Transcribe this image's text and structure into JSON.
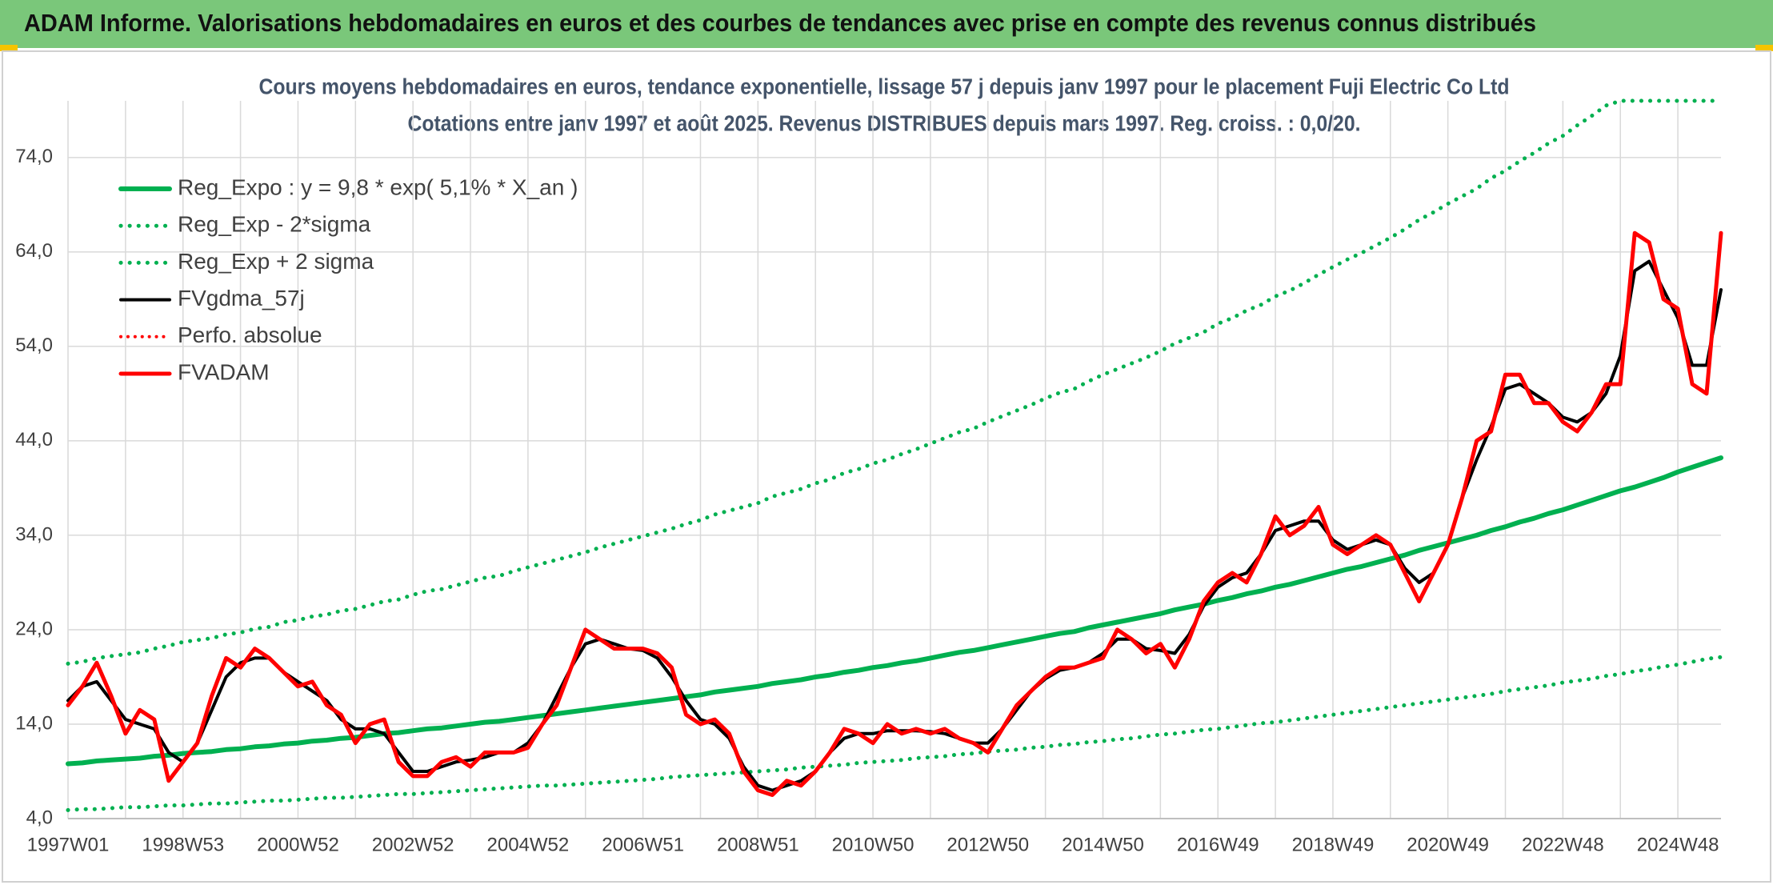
{
  "header": {
    "title": "ADAM Informe. Valorisations hebdomadaires en euros et des courbes de tendances avec prise en compte des revenus connus distribués"
  },
  "chart_data": {
    "type": "line",
    "title": "Cours moyens hebdomadaires en euros, tendance exponentielle, lissage 57 j depuis janv 1997 pour le placement Fuji Electric Co Ltd",
    "subtitle": "Cotations entre janv 1997 et août 2025. Revenus DISTRIBUES depuis mars 1997. Reg. croiss. : 0,0/20.",
    "categories": [
      "1997W01",
      null,
      null,
      null,
      null,
      null,
      null,
      null,
      "1998W53",
      null,
      null,
      null,
      null,
      null,
      null,
      null,
      "2000W52",
      null,
      null,
      null,
      null,
      null,
      null,
      null,
      "2002W52",
      null,
      null,
      null,
      null,
      null,
      null,
      null,
      "2004W52",
      null,
      null,
      null,
      null,
      null,
      null,
      null,
      "2006W51",
      null,
      null,
      null,
      null,
      null,
      null,
      null,
      "2008W51",
      null,
      null,
      null,
      null,
      null,
      null,
      null,
      "2010W50",
      null,
      null,
      null,
      null,
      null,
      null,
      null,
      "2012W50",
      null,
      null,
      null,
      null,
      null,
      null,
      null,
      "2014W50",
      null,
      null,
      null,
      null,
      null,
      null,
      null,
      "2016W49",
      null,
      null,
      null,
      null,
      null,
      null,
      null,
      "2018W49",
      null,
      null,
      null,
      null,
      null,
      null,
      null,
      "2020W49",
      null,
      null,
      null,
      null,
      null,
      null,
      null,
      "2022W48",
      null,
      null,
      null,
      null,
      null,
      null,
      null,
      "2024W48",
      null,
      null,
      null
    ],
    "ylim": [
      4,
      80
    ],
    "yticks": [
      {
        "value": 4,
        "label": "4,0"
      },
      {
        "value": 14,
        "label": "14,0"
      },
      {
        "value": 24,
        "label": "24,0"
      },
      {
        "value": 34,
        "label": "34,0"
      },
      {
        "value": 44,
        "label": "44,0"
      },
      {
        "value": 54,
        "label": "54,0"
      },
      {
        "value": 64,
        "label": "64,0"
      },
      {
        "value": 74,
        "label": "74,0"
      }
    ],
    "grid": true,
    "legend": "top-left",
    "series": [
      {
        "name": "Reg_Expo : y = 9,8 * exp( 5,1% *  X_an )",
        "color": "#00b050",
        "style": "solid",
        "width": 6,
        "values": [
          9.8,
          9.9,
          10.1,
          10.2,
          10.3,
          10.4,
          10.6,
          10.7,
          10.9,
          11.0,
          11.1,
          11.3,
          11.4,
          11.6,
          11.7,
          11.9,
          12.0,
          12.2,
          12.3,
          12.5,
          12.6,
          12.8,
          13.0,
          13.1,
          13.3,
          13.5,
          13.6,
          13.8,
          14.0,
          14.2,
          14.3,
          14.5,
          14.7,
          14.9,
          15.1,
          15.3,
          15.5,
          15.7,
          15.9,
          16.1,
          16.3,
          16.5,
          16.7,
          16.9,
          17.1,
          17.4,
          17.6,
          17.8,
          18.0,
          18.3,
          18.5,
          18.7,
          19.0,
          19.2,
          19.5,
          19.7,
          20.0,
          20.2,
          20.5,
          20.7,
          21.0,
          21.3,
          21.6,
          21.8,
          22.1,
          22.4,
          22.7,
          23.0,
          23.3,
          23.6,
          23.8,
          24.2,
          24.5,
          24.8,
          25.1,
          25.4,
          25.7,
          26.1,
          26.4,
          26.7,
          27.1,
          27.4,
          27.8,
          28.1,
          28.5,
          28.8,
          29.2,
          29.6,
          30.0,
          30.4,
          30.7,
          31.1,
          31.5,
          31.9,
          32.4,
          32.8,
          33.2,
          33.6,
          34.0,
          34.5,
          34.9,
          35.4,
          35.8,
          36.3,
          36.7,
          37.2,
          37.7,
          38.2,
          38.7,
          39.1,
          39.6,
          40.1,
          40.7,
          41.2,
          41.7,
          42.2
        ]
      },
      {
        "name": "Reg_Exp - 2*sigma",
        "color": "#00b050",
        "style": "dotted",
        "width": 5,
        "values": [
          4.9,
          5.0,
          5.0,
          5.1,
          5.2,
          5.2,
          5.3,
          5.4,
          5.4,
          5.5,
          5.6,
          5.6,
          5.7,
          5.8,
          5.9,
          5.9,
          6.0,
          6.1,
          6.2,
          6.2,
          6.3,
          6.4,
          6.5,
          6.6,
          6.6,
          6.7,
          6.8,
          6.9,
          7.0,
          7.1,
          7.2,
          7.3,
          7.4,
          7.5,
          7.5,
          7.6,
          7.7,
          7.8,
          7.9,
          8.0,
          8.1,
          8.2,
          8.4,
          8.5,
          8.6,
          8.7,
          8.8,
          8.9,
          9.0,
          9.1,
          9.2,
          9.4,
          9.5,
          9.6,
          9.7,
          9.9,
          10.0,
          10.1,
          10.2,
          10.4,
          10.5,
          10.6,
          10.8,
          10.9,
          11.1,
          11.2,
          11.3,
          11.5,
          11.6,
          11.8,
          11.9,
          12.1,
          12.2,
          12.4,
          12.5,
          12.7,
          12.9,
          13.0,
          13.2,
          13.4,
          13.5,
          13.7,
          13.9,
          14.1,
          14.2,
          14.4,
          14.6,
          14.8,
          15.0,
          15.2,
          15.4,
          15.6,
          15.8,
          16.0,
          16.2,
          16.4,
          16.6,
          16.8,
          17.0,
          17.2,
          17.5,
          17.7,
          17.9,
          18.1,
          18.4,
          18.6,
          18.8,
          19.1,
          19.3,
          19.6,
          19.8,
          20.1,
          20.3,
          20.6,
          20.9,
          21.1
        ]
      },
      {
        "name": "Reg_Exp + 2 sigma",
        "color": "#00b050",
        "style": "dotted",
        "width": 5,
        "values": [
          20.4,
          20.6,
          21.0,
          21.2,
          21.4,
          21.6,
          22.0,
          22.3,
          22.7,
          22.9,
          23.1,
          23.5,
          23.7,
          24.1,
          24.3,
          24.8,
          25.0,
          25.4,
          25.6,
          26.0,
          26.2,
          26.6,
          27.0,
          27.2,
          27.7,
          28.1,
          28.3,
          28.7,
          29.1,
          29.5,
          29.7,
          30.2,
          30.6,
          31.0,
          31.4,
          31.8,
          32.2,
          32.7,
          33.1,
          33.5,
          33.9,
          34.3,
          34.7,
          35.2,
          35.6,
          36.2,
          36.6,
          37.0,
          37.4,
          38.1,
          38.5,
          38.9,
          39.5,
          39.9,
          40.6,
          41.0,
          41.6,
          42.0,
          42.6,
          43.1,
          43.7,
          44.3,
          44.9,
          45.3,
          46.0,
          46.6,
          47.2,
          47.8,
          48.5,
          49.1,
          49.5,
          50.3,
          51.0,
          51.6,
          52.2,
          52.8,
          53.5,
          54.3,
          54.9,
          55.5,
          56.4,
          57.0,
          57.8,
          58.4,
          59.3,
          59.9,
          60.7,
          61.6,
          62.4,
          63.2,
          63.9,
          64.7,
          65.5,
          66.4,
          67.4,
          68.2,
          69.1,
          69.9,
          70.7,
          71.8,
          72.6,
          73.6,
          74.5,
          75.5,
          76.3,
          77.4,
          78.4,
          79.5,
          80,
          80,
          80,
          80,
          80,
          80,
          80,
          80
        ]
      },
      {
        "name": "FVgdma_57j",
        "color": "#000000",
        "style": "solid",
        "width": 4,
        "values": [
          16.5,
          18,
          18.5,
          16.5,
          14.5,
          14,
          13.5,
          11,
          10,
          12,
          15.5,
          19,
          20.5,
          21,
          21,
          19.5,
          18.5,
          17.5,
          16.5,
          14.5,
          13.5,
          13.5,
          13,
          11,
          9,
          9,
          9.5,
          10,
          10.2,
          10.5,
          11,
          11,
          12,
          14,
          17,
          20,
          22.5,
          23,
          22.5,
          22,
          21.8,
          21,
          19,
          16.5,
          14.5,
          14,
          12.5,
          9.5,
          7.5,
          7,
          7.5,
          8,
          9,
          11,
          12.5,
          13,
          13,
          13.3,
          13.3,
          13.3,
          13.2,
          13,
          12.5,
          12,
          12,
          13.5,
          15.5,
          17.5,
          18.8,
          19.7,
          20,
          20.5,
          21.5,
          23,
          23,
          22,
          21.8,
          21.5,
          23.5,
          26.5,
          28.5,
          29.5,
          30,
          32,
          34.5,
          35,
          35.5,
          35.5,
          33.5,
          32.5,
          33,
          33.5,
          33,
          30.5,
          29,
          30,
          33,
          38,
          42,
          45.5,
          49.5,
          50,
          49,
          48,
          46.5,
          46,
          47,
          49,
          53,
          62,
          63,
          60,
          57,
          52,
          52,
          60
        ]
      },
      {
        "name": "Perfo. absolue",
        "color": "#ff0000",
        "style": "dotted",
        "width": 4,
        "values": [
          16,
          18,
          20.5,
          17,
          13,
          15.5,
          14.5,
          8,
          10,
          12,
          17,
          21,
          20,
          22,
          21,
          19.5,
          18,
          18.5,
          16,
          15,
          12,
          14,
          14.5,
          10,
          8.5,
          8.5,
          10,
          10.5,
          9.5,
          11,
          11,
          11,
          11.5,
          14,
          16,
          20,
          24,
          23,
          22,
          22,
          22,
          21.5,
          20,
          15,
          14,
          14.5,
          13,
          9,
          7,
          6.5,
          8,
          7.5,
          9,
          11,
          13.5,
          13,
          12,
          14,
          13,
          13.5,
          13,
          13.5,
          12.5,
          12,
          11,
          13.5,
          16,
          17.5,
          19,
          20,
          20,
          20.5,
          21,
          24,
          23,
          21.5,
          22.5,
          20,
          23,
          27,
          29,
          30,
          29,
          32,
          36,
          34,
          35,
          37,
          33,
          32,
          33,
          34,
          33,
          30,
          27,
          30,
          33,
          38,
          44,
          45,
          51,
          51,
          48,
          48,
          46,
          45,
          47,
          50,
          50,
          66,
          65,
          59,
          58,
          50,
          49,
          66
        ]
      },
      {
        "name": "FVADAM",
        "color": "#ff0000",
        "style": "solid",
        "width": 5,
        "values": [
          16,
          18,
          20.5,
          17,
          13,
          15.5,
          14.5,
          8,
          10,
          12,
          17,
          21,
          20,
          22,
          21,
          19.5,
          18,
          18.5,
          16,
          15,
          12,
          14,
          14.5,
          10,
          8.5,
          8.5,
          10,
          10.5,
          9.5,
          11,
          11,
          11,
          11.5,
          14,
          16,
          20,
          24,
          23,
          22,
          22,
          22,
          21.5,
          20,
          15,
          14,
          14.5,
          13,
          9,
          7,
          6.5,
          8,
          7.5,
          9,
          11,
          13.5,
          13,
          12,
          14,
          13,
          13.5,
          13,
          13.5,
          12.5,
          12,
          11,
          13.5,
          16,
          17.5,
          19,
          20,
          20,
          20.5,
          21,
          24,
          23,
          21.5,
          22.5,
          20,
          23,
          27,
          29,
          30,
          29,
          32,
          36,
          34,
          35,
          37,
          33,
          32,
          33,
          34,
          33,
          30,
          27,
          30,
          33,
          38,
          44,
          45,
          51,
          51,
          48,
          48,
          46,
          45,
          47,
          50,
          50,
          66,
          65,
          59,
          58,
          50,
          49,
          66
        ]
      }
    ]
  }
}
